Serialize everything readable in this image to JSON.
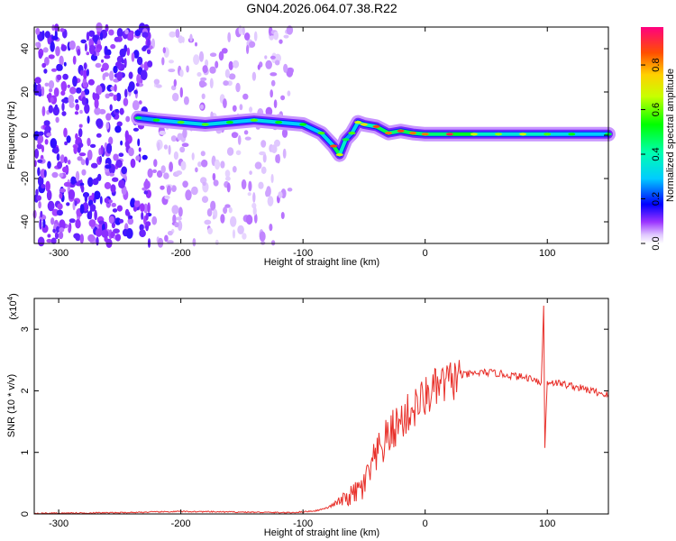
{
  "title": "GN04.2026.064.07.38.R22",
  "chart_data": [
    {
      "type": "heatmap",
      "xlabel": "Height of straight line (km)",
      "ylabel": "Frequency (Hz)",
      "xlim": [
        -320,
        150
      ],
      "ylim": [
        -50,
        50
      ],
      "xticks": [
        -300,
        -200,
        -100,
        0,
        100
      ],
      "yticks": [
        -40,
        -20,
        0,
        20,
        40
      ],
      "colorbar": {
        "label": "Normalized spectral amplitude",
        "range": [
          0,
          0.97
        ],
        "ticks": [
          0,
          0.2,
          0.4,
          0.6,
          0.8
        ]
      },
      "ridge": {
        "x": [
          -235,
          -220,
          -200,
          -180,
          -160,
          -140,
          -120,
          -100,
          -85,
          -75,
          -70,
          -65,
          -60,
          -55,
          -50,
          -40,
          -30,
          -20,
          -10,
          0,
          20,
          40,
          60,
          80,
          100,
          120,
          150
        ],
        "freq": [
          8,
          7,
          6,
          5,
          6,
          7,
          6,
          5,
          1,
          -5,
          -9,
          -2,
          1,
          6,
          5,
          4,
          1,
          2,
          1,
          0.5,
          0.5,
          0.5,
          0.5,
          0.5,
          0.5,
          0.5,
          0.5
        ],
        "amplitude": [
          0.5,
          0.55,
          0.6,
          0.6,
          0.55,
          0.6,
          0.55,
          0.55,
          0.6,
          0.9,
          0.7,
          0.5,
          0.6,
          0.7,
          0.75,
          0.9,
          0.85,
          0.9,
          0.85,
          0.85,
          0.95,
          0.7,
          0.65,
          0.7,
          0.6,
          0.55,
          0.5
        ]
      },
      "noise_region": [
        -320,
        -110
      ]
    },
    {
      "type": "line",
      "xlabel": "Height of straight line (km)",
      "ylabel": "SNR (10 * v/v)",
      "y_multiplier": "(x10^4)",
      "y_multiplier_base": "(x10",
      "y_multiplier_exp": "4",
      "xlim": [
        -320,
        150
      ],
      "ylim": [
        0,
        3.5
      ],
      "xticks": [
        -300,
        -200,
        -100,
        0,
        100
      ],
      "yticks": [
        0,
        1,
        2,
        3
      ],
      "series": [
        {
          "name": "SNR",
          "color": "#e8302a",
          "x": [
            -320,
            -250,
            -200,
            -150,
            -110,
            -90,
            -80,
            -70,
            -60,
            -50,
            -45,
            -40,
            -35,
            -30,
            -25,
            -20,
            -10,
            0,
            10,
            20,
            30,
            40,
            50,
            60,
            70,
            80,
            90,
            95,
            97,
            98,
            100,
            110,
            120,
            130,
            140,
            150
          ],
          "y": [
            0.01,
            0.02,
            0.04,
            0.03,
            0.02,
            0.05,
            0.1,
            0.2,
            0.3,
            0.45,
            0.7,
            0.9,
            1.1,
            1.25,
            1.4,
            1.5,
            1.7,
            1.9,
            2.05,
            2.15,
            2.25,
            2.28,
            2.3,
            2.28,
            2.25,
            2.22,
            2.2,
            2.1,
            3.4,
            1.1,
            2.15,
            2.12,
            2.08,
            2.03,
            1.98,
            1.93
          ]
        }
      ]
    }
  ]
}
